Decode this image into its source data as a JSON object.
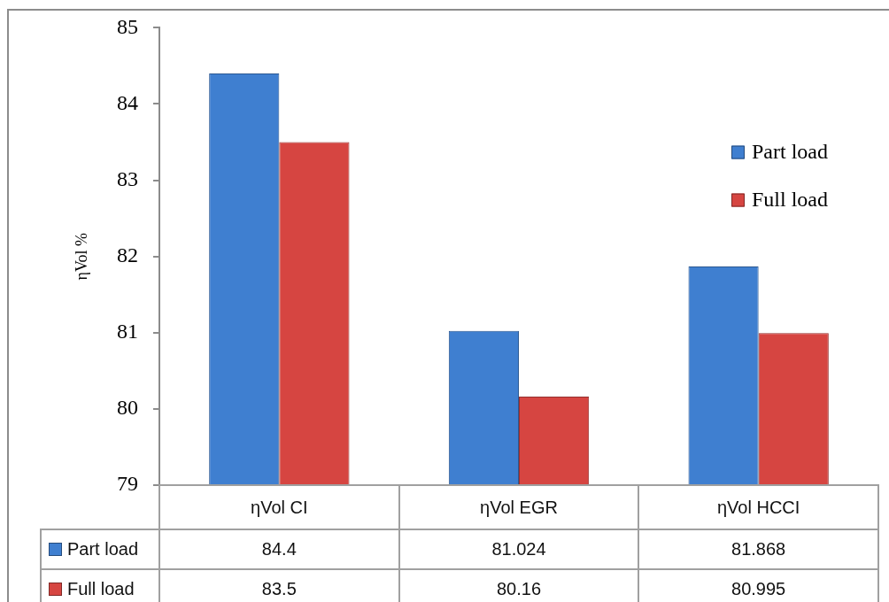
{
  "chart_data": {
    "type": "bar",
    "ylabel": "ηVol %",
    "categories": [
      "ηVol CI",
      "ηVol EGR",
      "ηVol HCCI"
    ],
    "series": [
      {
        "name": "Part load",
        "color": "#3f7fd0",
        "values": [
          84.4,
          81.024,
          81.868
        ]
      },
      {
        "name": "Full load",
        "color": "#d64541",
        "values": [
          83.5,
          80.16,
          80.995
        ]
      }
    ],
    "ylim": [
      79,
      85
    ],
    "yticks": [
      79,
      80,
      81,
      82,
      83,
      84,
      85
    ],
    "legend": "top right",
    "data_labels": true
  }
}
